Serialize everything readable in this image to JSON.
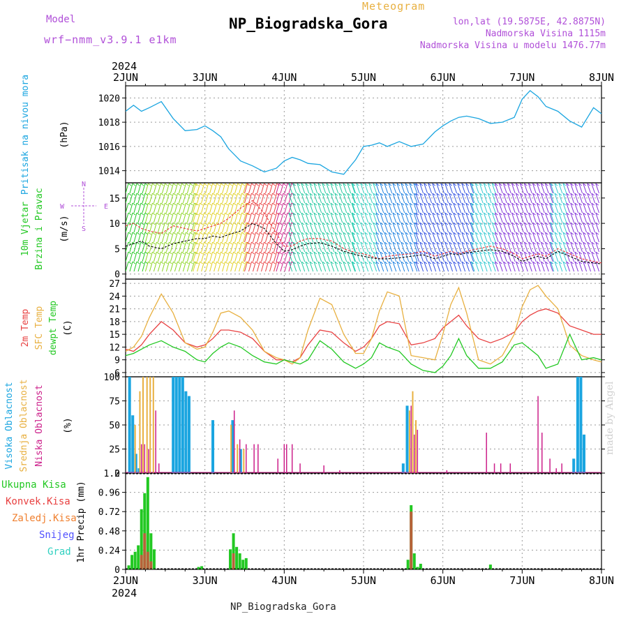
{
  "header": {
    "model_label": "Model",
    "model_name": "wrf−nmm_v3.9.1  e1km",
    "meteogram_label": "Meteogram",
    "title": "NP_Biogradska_Gora",
    "lonlat": "lon,lat (19.5875E, 42.8875N)",
    "elevation": "Nadmorska Visina 1115m",
    "elevation_model": "Nadmorska Visina u modelu 1476.77m"
  },
  "footer": {
    "station": "NP_Biogradska_Gora",
    "made_by": "made by Angel"
  },
  "colors": {
    "pressure": "#1aa5e0",
    "wind_speed": "#000000",
    "wind_gust": "#e84040",
    "temp_2m": "#e84040",
    "temp_sfc": "#e8b040",
    "dewpoint": "#22c822",
    "cloud_high": "#1aa5e0",
    "cloud_mid": "#e8b040",
    "cloud_low": "#cc1f8a",
    "precip_total": "#22c822",
    "precip_conv": "#e84040",
    "precip_snow": "#5050ff",
    "precip_hail": "#30d0c0",
    "accent_purple": "#b04fd8"
  },
  "chart_data": [
    {
      "id": "pressure",
      "type": "line",
      "title": "",
      "ylabel_main": "Pritisak na nivou mora",
      "ylabel_unit": "(hPa)",
      "ylim": [
        1013,
        1021
      ],
      "yticks": [
        "1014",
        "1016",
        "1018",
        "1020"
      ],
      "grid": true,
      "x_start_label": "2024",
      "x_top_labels": [
        "2JUN",
        "3JUN",
        "4JUN",
        "5JUN",
        "6JUN",
        "7JUN",
        "8JUN"
      ],
      "x": [
        0,
        0.1,
        0.2,
        0.3,
        0.45,
        0.6,
        0.75,
        0.9,
        1.0,
        1.1,
        1.2,
        1.3,
        1.45,
        1.6,
        1.75,
        1.9,
        2.0,
        2.1,
        2.2,
        2.3,
        2.45,
        2.6,
        2.75,
        2.9,
        3.0,
        3.1,
        3.2,
        3.3,
        3.45,
        3.6,
        3.75,
        3.9,
        4.0,
        4.1,
        4.2,
        4.3,
        4.45,
        4.6,
        4.75,
        4.9,
        5.0,
        5.1,
        5.2,
        5.3,
        5.45,
        5.6,
        5.75,
        5.9,
        6.0
      ],
      "series": [
        {
          "values": [
            1018.9,
            1019.4,
            1018.9,
            1019.2,
            1019.7,
            1018.3,
            1017.3,
            1017.4,
            1017.7,
            1017.3,
            1016.8,
            1015.8,
            1014.8,
            1014.4,
            1013.9,
            1014.2,
            1014.8,
            1015.1,
            1014.9,
            1014.6,
            1014.5,
            1013.9,
            1013.7,
            1014.9,
            1016.0,
            1016.1,
            1016.3,
            1016.0,
            1016.4,
            1016.0,
            1016.2,
            1017.2,
            1017.7,
            1018.1,
            1018.4,
            1018.5,
            1018.3,
            1017.9,
            1018.0,
            1018.4,
            1019.9,
            1020.6,
            1020.1,
            1019.3,
            1018.9,
            1018.1,
            1017.6,
            1019.2,
            1018.7
          ]
        }
      ]
    },
    {
      "id": "wind",
      "type": "line",
      "title": "",
      "ylabel_main": "10m Vjetar",
      "ylabel_second": "Brzina i Pravac",
      "ylabel_unit": "(m/s)",
      "compass": {
        "n": "N",
        "s": "S",
        "e": "E",
        "w": "W"
      },
      "ylim": [
        -1,
        18
      ],
      "yticks": [
        "0",
        "5",
        "10",
        "15"
      ],
      "grid": true,
      "x": [
        0,
        0.1,
        0.2,
        0.3,
        0.45,
        0.6,
        0.75,
        0.9,
        1.0,
        1.1,
        1.2,
        1.3,
        1.45,
        1.6,
        1.75,
        1.9,
        2.0,
        2.1,
        2.2,
        2.3,
        2.45,
        2.6,
        2.75,
        2.9,
        3.0,
        3.1,
        3.2,
        3.3,
        3.45,
        3.6,
        3.75,
        3.9,
        4.0,
        4.1,
        4.2,
        4.3,
        4.45,
        4.6,
        4.75,
        4.9,
        5.0,
        5.1,
        5.2,
        5.3,
        5.45,
        5.6,
        5.75,
        5.9,
        6.0
      ],
      "series": [
        {
          "name": "speed",
          "values": [
            5.5,
            6.0,
            6.5,
            5.5,
            5.0,
            6.0,
            6.5,
            7.0,
            7.0,
            7.5,
            7.2,
            7.8,
            8.5,
            10.0,
            9.0,
            6.0,
            4.5,
            4.8,
            5.5,
            6.0,
            6.2,
            5.5,
            4.5,
            3.8,
            3.5,
            3.2,
            3.0,
            3.0,
            3.2,
            3.5,
            3.8,
            3.0,
            3.5,
            4.0,
            3.8,
            4.2,
            4.5,
            4.8,
            4.5,
            3.5,
            2.5,
            3.0,
            3.5,
            3.0,
            4.5,
            3.5,
            2.5,
            2.2,
            2.0
          ]
        },
        {
          "name": "gust",
          "values": [
            9.5,
            10.0,
            9.0,
            8.5,
            8.0,
            9.5,
            9.0,
            8.5,
            9.0,
            9.5,
            10.0,
            11.0,
            13.0,
            14.5,
            12.0,
            8.0,
            5.5,
            5.5,
            6.5,
            7.0,
            7.0,
            6.5,
            5.0,
            4.2,
            4.0,
            3.5,
            3.0,
            3.5,
            3.8,
            4.0,
            4.5,
            3.5,
            4.0,
            4.5,
            4.0,
            4.5,
            5.0,
            5.5,
            5.0,
            4.0,
            3.0,
            3.5,
            4.0,
            3.5,
            5.0,
            4.0,
            3.0,
            2.5,
            2.2
          ]
        }
      ],
      "barb_bands": [
        {
          "from": 0.0,
          "to": 0.25,
          "color": "#22c822"
        },
        {
          "from": 0.25,
          "to": 0.85,
          "color": "#8ad420"
        },
        {
          "from": 0.85,
          "to": 1.5,
          "color": "#e0d020"
        },
        {
          "from": 1.5,
          "to": 1.9,
          "color": "#e84040"
        },
        {
          "from": 1.9,
          "to": 2.1,
          "color": "#cc1f8a"
        },
        {
          "from": 2.1,
          "to": 2.9,
          "color": "#22c8a0"
        },
        {
          "from": 2.9,
          "to": 3.2,
          "color": "#30d0c0"
        },
        {
          "from": 3.2,
          "to": 3.7,
          "color": "#1a7fe0"
        },
        {
          "from": 3.7,
          "to": 4.4,
          "color": "#3050e0"
        },
        {
          "from": 4.4,
          "to": 4.7,
          "color": "#30c8d0"
        },
        {
          "from": 4.7,
          "to": 5.4,
          "color": "#8030d8"
        },
        {
          "from": 5.4,
          "to": 5.6,
          "color": "#30c8d0"
        },
        {
          "from": 5.6,
          "to": 6.0,
          "color": "#8030d8"
        }
      ]
    },
    {
      "id": "temperature",
      "type": "line",
      "title": "",
      "ylabel_main": "2m Temp",
      "ylabel_second": "SFC Temp",
      "ylabel_third": "dewpt Temp",
      "ylabel_unit": "(C)",
      "ylim": [
        5,
        28
      ],
      "yticks": [
        "6",
        "9",
        "12",
        "15",
        "18",
        "21",
        "24",
        "27"
      ],
      "grid": true,
      "x": [
        0,
        0.1,
        0.2,
        0.3,
        0.45,
        0.6,
        0.75,
        0.9,
        1.0,
        1.1,
        1.2,
        1.3,
        1.45,
        1.6,
        1.75,
        1.9,
        2.0,
        2.1,
        2.2,
        2.3,
        2.45,
        2.6,
        2.75,
        2.9,
        3.0,
        3.1,
        3.2,
        3.3,
        3.45,
        3.6,
        3.75,
        3.9,
        4.0,
        4.1,
        4.2,
        4.3,
        4.45,
        4.6,
        4.75,
        4.9,
        5.0,
        5.1,
        5.2,
        5.3,
        5.45,
        5.6,
        5.75,
        5.9,
        6.0
      ],
      "series": [
        {
          "name": "2m Temp",
          "values": [
            11.5,
            11.0,
            12.5,
            15.0,
            18.0,
            16.0,
            13.0,
            12.0,
            12.5,
            14.0,
            16.0,
            16.0,
            15.5,
            14.0,
            11.0,
            9.0,
            9.0,
            8.5,
            9.5,
            12.5,
            16.0,
            15.5,
            13.0,
            11.0,
            12.0,
            14.0,
            17.0,
            18.0,
            17.5,
            12.5,
            13.0,
            14.0,
            16.5,
            18.0,
            19.5,
            17.0,
            14.0,
            13.0,
            14.0,
            15.5,
            18.0,
            19.5,
            20.5,
            21.0,
            20.0,
            17.0,
            16.0,
            15.0,
            15.0
          ]
        },
        {
          "name": "SFC Temp",
          "values": [
            11.0,
            12.0,
            14.5,
            19.0,
            24.5,
            20.0,
            13.0,
            11.5,
            12.0,
            15.5,
            20.0,
            20.5,
            19.0,
            16.0,
            11.0,
            9.5,
            9.0,
            8.0,
            9.5,
            16.0,
            23.5,
            22.0,
            15.0,
            10.5,
            10.5,
            14.0,
            20.5,
            25.0,
            24.0,
            10.0,
            9.5,
            9.0,
            15.0,
            22.0,
            26.0,
            20.0,
            9.0,
            8.0,
            10.0,
            15.0,
            21.5,
            25.5,
            26.5,
            24.0,
            21.0,
            12.5,
            10.0,
            9.0,
            8.5
          ]
        },
        {
          "name": "dewpt Temp",
          "values": [
            10.0,
            10.5,
            11.5,
            12.5,
            13.5,
            12.0,
            11.0,
            9.0,
            8.5,
            10.5,
            12.0,
            13.0,
            12.0,
            10.0,
            8.5,
            8.0,
            9.0,
            8.5,
            8.0,
            9.0,
            13.5,
            11.5,
            8.5,
            7.0,
            8.0,
            9.5,
            13.0,
            12.0,
            11.0,
            8.0,
            6.5,
            6.0,
            7.5,
            10.0,
            14.0,
            10.0,
            7.0,
            7.0,
            8.5,
            12.5,
            13.0,
            11.5,
            10.0,
            7.0,
            8.0,
            15.0,
            9.0,
            9.5,
            9.0
          ]
        }
      ]
    },
    {
      "id": "clouds",
      "type": "bar",
      "title": "",
      "ylabel_main": "Visoka Oblacnost",
      "ylabel_second": "Srednja Oblacnost",
      "ylabel_third": "Niska Oblacnost",
      "ylabel_unit": "(%)",
      "ylim": [
        0,
        100
      ],
      "yticks": [
        "0",
        "25",
        "50",
        "75",
        "100"
      ],
      "grid": true,
      "series": [
        {
          "name": "Visoka Oblacnost",
          "x": [
            0.05,
            0.09,
            0.13,
            0.17,
            0.6,
            0.64,
            0.68,
            0.72,
            0.76,
            0.8,
            1.1,
            1.35,
            1.45,
            3.5,
            3.55,
            5.65,
            5.7,
            5.74,
            5.78
          ],
          "values": [
            100,
            60,
            20,
            5,
            100,
            100,
            100,
            100,
            85,
            80,
            55,
            55,
            25,
            10,
            70,
            15,
            100,
            100,
            40
          ]
        },
        {
          "name": "Srednja Oblacnost",
          "x": [
            0.12,
            0.18,
            0.22,
            0.27,
            0.31,
            0.35,
            1.33,
            1.41,
            1.49,
            3.58,
            3.62,
            3.66
          ],
          "values": [
            50,
            85,
            100,
            100,
            100,
            100,
            50,
            30,
            25,
            65,
            85,
            55
          ]
        },
        {
          "name": "Niska Oblacnost",
          "x": [
            0.2,
            0.24,
            0.29,
            0.38,
            0.42,
            1.37,
            1.44,
            1.52,
            1.62,
            1.67,
            1.92,
            2.0,
            2.03,
            2.1,
            2.2,
            2.5,
            2.7,
            3.6,
            3.64,
            3.68,
            4.05,
            4.55,
            4.65,
            4.73,
            4.85,
            5.2,
            5.25,
            5.35,
            5.43,
            5.5
          ],
          "values": [
            30,
            30,
            25,
            65,
            10,
            65,
            35,
            30,
            30,
            30,
            15,
            30,
            30,
            30,
            10,
            8,
            3,
            70,
            40,
            45,
            3,
            42,
            10,
            10,
            10,
            80,
            42,
            15,
            5,
            10
          ]
        }
      ]
    },
    {
      "id": "precip",
      "type": "bar",
      "title": "",
      "ylabel_main": "1hr Precip",
      "ylabel_unit": "(mm)",
      "ylim": [
        0,
        1.2
      ],
      "yticks": [
        "0",
        "0.24",
        "0.48",
        "0.72",
        "0.96",
        "1.2"
      ],
      "grid": true,
      "x_bottom_labels": [
        "2JUN",
        "3JUN",
        "4JUN",
        "5JUN",
        "6JUN",
        "7JUN",
        "8JUN"
      ],
      "x_end_label": "2024",
      "legend": [
        "Ukupna Kisa",
        "Konvek.Kisa",
        "Zaledj.Kisa",
        "Snijeg",
        "Grad"
      ],
      "series": [
        {
          "name": "Ukupna Kisa",
          "x": [
            0.04,
            0.08,
            0.12,
            0.16,
            0.2,
            0.24,
            0.28,
            0.32,
            0.36,
            0.92,
            0.96,
            1.32,
            1.36,
            1.4,
            1.44,
            1.48,
            1.52,
            3.56,
            3.6,
            3.64,
            3.68,
            3.72,
            4.6
          ],
          "values": [
            0.05,
            0.18,
            0.22,
            0.3,
            0.75,
            0.95,
            1.15,
            0.45,
            0.25,
            0.03,
            0.04,
            0.25,
            0.45,
            0.28,
            0.2,
            0.12,
            0.14,
            0.12,
            0.8,
            0.2,
            0.03,
            0.07,
            0.06
          ]
        },
        {
          "name": "Konvek.Kisa",
          "x": [
            0.2,
            0.24,
            0.28,
            0.32,
            1.36,
            3.6
          ],
          "values": [
            0.18,
            0.45,
            0.22,
            0.1,
            0.2,
            0.72
          ]
        }
      ]
    }
  ]
}
